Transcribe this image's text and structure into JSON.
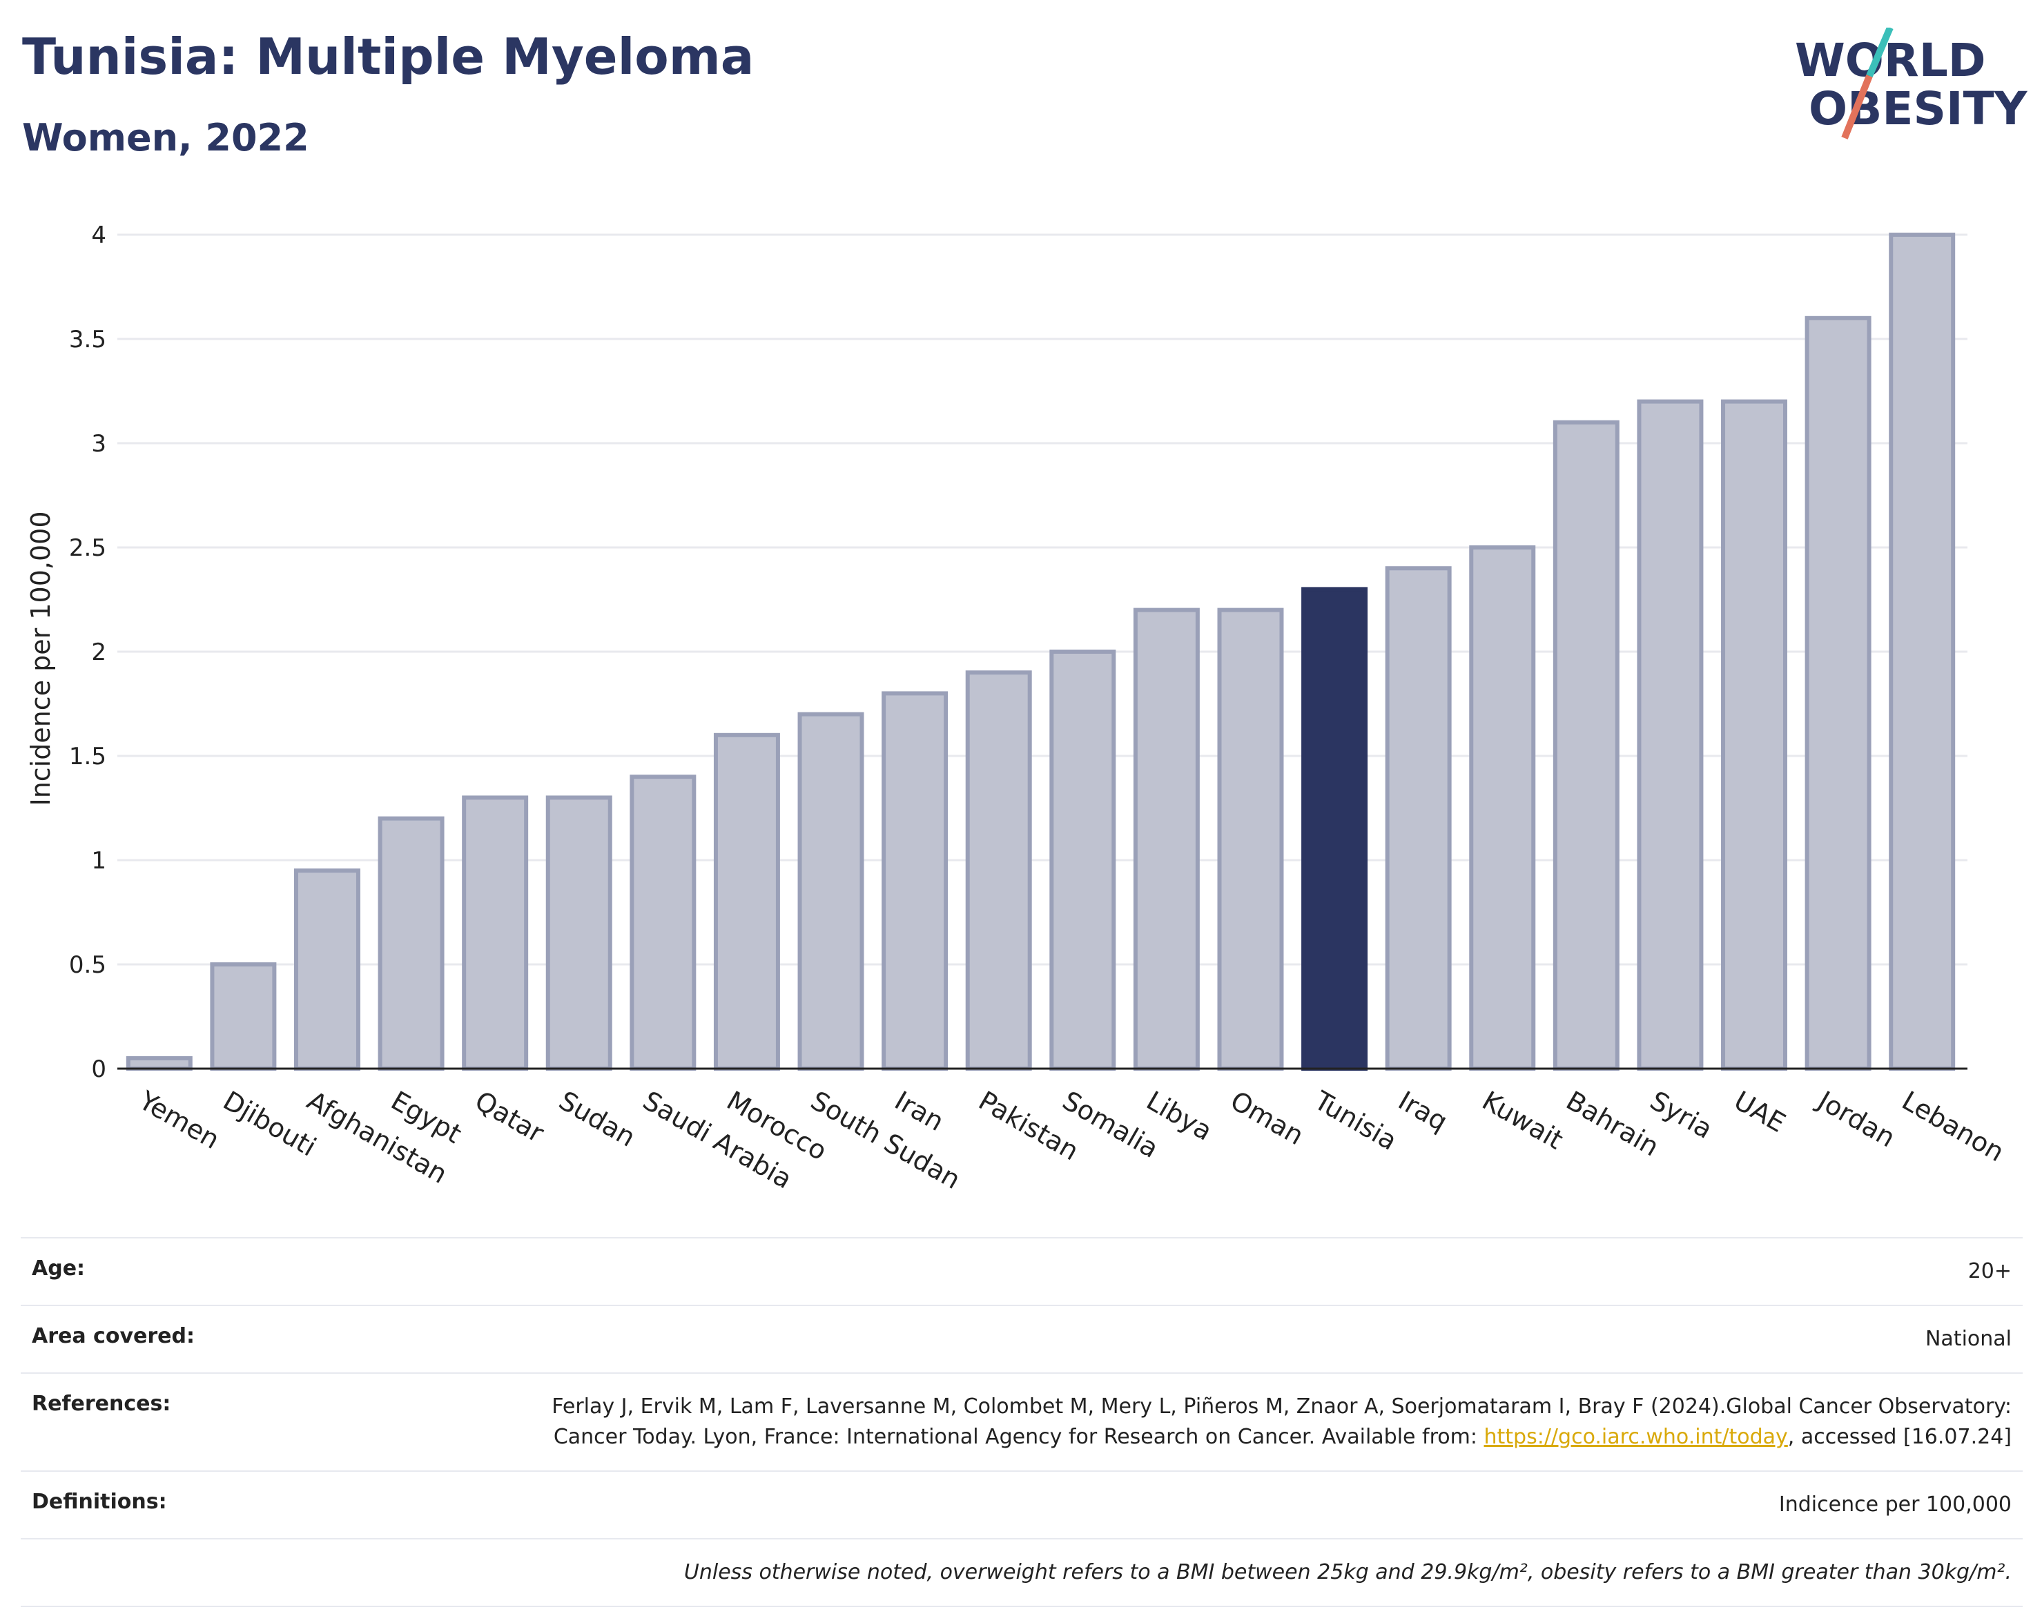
{
  "header": {
    "title": "Tunisia: Multiple Myeloma",
    "subtitle": "Women, 2022"
  },
  "logo": {
    "line1": "WORLD",
    "line2": "OBESITY",
    "colors": {
      "text": "#2b3662",
      "slash_top": "#3bbfb9",
      "slash_bottom": "#e2725b"
    }
  },
  "chart_data": {
    "type": "bar",
    "title": "Tunisia: Multiple Myeloma",
    "subtitle": "Women, 2022",
    "ylabel": "Incidence per 100,000",
    "xlabel": "",
    "ylim": [
      0,
      4
    ],
    "yticks": [
      "0",
      "0.5",
      "1",
      "1.5",
      "2",
      "2.5",
      "3",
      "3.5",
      "4"
    ],
    "grid": true,
    "highlight": "Tunisia",
    "colors": {
      "bar": "#bfc2d0",
      "bar_edge": "#9aa0b8",
      "highlight": "#2b3561"
    },
    "categories": [
      "Yemen",
      "Djibouti",
      "Afghanistan",
      "Egypt",
      "Qatar",
      "Sudan",
      "Saudi Arabia",
      "Morocco",
      "South Sudan",
      "Iran",
      "Pakistan",
      "Somalia",
      "Libya",
      "Oman",
      "Tunisia",
      "Iraq",
      "Kuwait",
      "Bahrain",
      "Syria",
      "UAE",
      "Jordan",
      "Lebanon"
    ],
    "values": [
      0.05,
      0.5,
      0.95,
      1.2,
      1.3,
      1.3,
      1.4,
      1.6,
      1.7,
      1.8,
      1.9,
      2.0,
      2.2,
      2.2,
      2.3,
      2.4,
      2.5,
      3.1,
      3.2,
      3.2,
      3.6,
      4.0
    ]
  },
  "meta": {
    "age_label": "Age:",
    "age_value": "20+",
    "area_label": "Area covered:",
    "area_value": "National",
    "references_label": "References:",
    "references_text1": "Ferlay J, Ervik M, Lam F, Laversanne M, Colombet M, Mery L, Piñeros M, Znaor A, Soerjomataram I, Bray F (2024).Global Cancer Observatory: Cancer Today. Lyon, France: International Agency for Research on Cancer. Available from: ",
    "references_link": "https://gco.iarc.who.int/today",
    "references_text2": ", accessed [16.07.24]",
    "definitions_label": "Definitions:",
    "definitions_value": "Indicence per 100,000",
    "note": "Unless otherwise noted, overweight refers to a BMI between 25kg and 29.9kg/m², obesity refers to a BMI greater than 30kg/m²."
  }
}
